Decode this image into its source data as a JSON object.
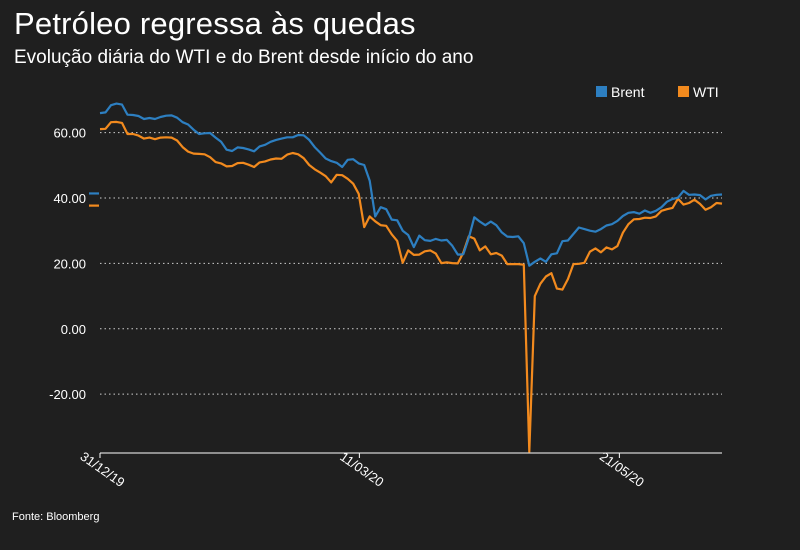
{
  "title": "Petróleo regressa às quedas",
  "subtitle": "Evolução diária do WTI e do Brent desde início do ano",
  "source": "Fonte: Bloomberg",
  "colors": {
    "brent": "#2d7fc1",
    "wti": "#f28a1e",
    "background": "#1f1f1f",
    "grid": "#cfcfcf"
  },
  "chart_data": {
    "type": "line",
    "ylim": [
      -38,
      70
    ],
    "yticks": [
      60,
      40,
      20,
      0,
      -20
    ],
    "ytick_labels": [
      "60.00",
      "40.00",
      "20.00",
      "0.00",
      "-20.00"
    ],
    "xtick_labels": [
      "31/12/19",
      "11/03/20",
      "21/05/20"
    ],
    "grid": "horizontal dotted",
    "legend": "top-right",
    "series": [
      {
        "name": "Brent",
        "values": [
          66,
          66.2,
          68.4,
          68.9,
          68.6,
          65.5,
          65.4,
          65.1,
          64.2,
          64.5,
          64.2,
          64.8,
          65.2,
          65.3,
          64.6,
          63.2,
          62.5,
          60.9,
          59.6,
          59.8,
          59.9,
          58.5,
          57.2,
          54.8,
          54.4,
          55.5,
          55.3,
          54.9,
          54.3,
          55.8,
          56.3,
          57.2,
          57.8,
          58.2,
          58.6,
          58.6,
          59.3,
          59.2,
          57.8,
          55.6,
          53.9,
          52.1,
          51.3,
          50.8,
          49.5,
          51.7,
          51.9,
          50.6,
          50.1,
          45.3,
          34.4,
          37.2,
          36.6,
          33.4,
          33.2,
          30.0,
          28.7,
          25.0,
          28.5,
          27.1,
          26.9,
          27.5,
          27.0,
          27.2,
          25.4,
          22.7,
          22.8,
          27.8,
          34.1,
          32.8,
          31.7,
          32.8,
          31.7,
          29.5,
          28.2,
          28.1,
          28.3,
          26.2,
          19.3,
          20.5,
          21.5,
          20.5,
          22.8,
          23.1,
          26.8,
          27.0,
          29.0,
          31.0,
          30.5,
          30.0,
          29.7,
          30.5,
          31.6,
          32.0,
          33.0,
          34.5,
          35.5,
          35.7,
          35.2,
          36.2,
          35.5,
          36.1,
          37.2,
          38.9,
          39.7,
          40.1,
          42.2,
          41.0,
          41.1,
          40.9,
          39.6,
          40.7,
          41.0,
          41.1
        ]
      },
      {
        "name": "WTI",
        "values": [
          61.1,
          61.2,
          63.2,
          63.3,
          63.0,
          59.6,
          59.6,
          59.1,
          58.2,
          58.5,
          58.0,
          58.5,
          58.6,
          58.5,
          57.6,
          55.6,
          54.2,
          53.6,
          53.5,
          53.4,
          52.5,
          51.0,
          50.6,
          49.7,
          49.8,
          50.7,
          50.8,
          50.2,
          49.5,
          50.9,
          51.2,
          51.8,
          52.1,
          52.0,
          53.3,
          53.8,
          53.4,
          52.2,
          50.1,
          48.8,
          47.8,
          46.7,
          44.8,
          47.1,
          47.0,
          45.9,
          44.4,
          41.3,
          31.1,
          34.4,
          32.9,
          31.7,
          31.5,
          28.9,
          26.9,
          20.2,
          24.0,
          22.6,
          22.7,
          23.7,
          24.0,
          23.0,
          20.1,
          20.3,
          20.1,
          20.0,
          23.3,
          28.3,
          27.6,
          24.0,
          25.2,
          22.8,
          23.2,
          22.4,
          19.8,
          19.8,
          19.8,
          19.6,
          -37.6,
          10.0,
          13.8,
          16.0,
          17.0,
          12.3,
          12.0,
          15.2,
          19.8,
          19.9,
          20.2,
          23.6,
          24.6,
          23.4,
          24.9,
          24.3,
          25.3,
          29.4,
          32.0,
          33.5,
          33.6,
          34.0,
          33.9,
          34.4,
          36.1,
          36.6,
          37.0,
          39.8,
          38.0,
          38.5,
          39.5,
          38.2,
          36.4,
          37.2,
          38.5,
          38.3
        ]
      }
    ]
  }
}
